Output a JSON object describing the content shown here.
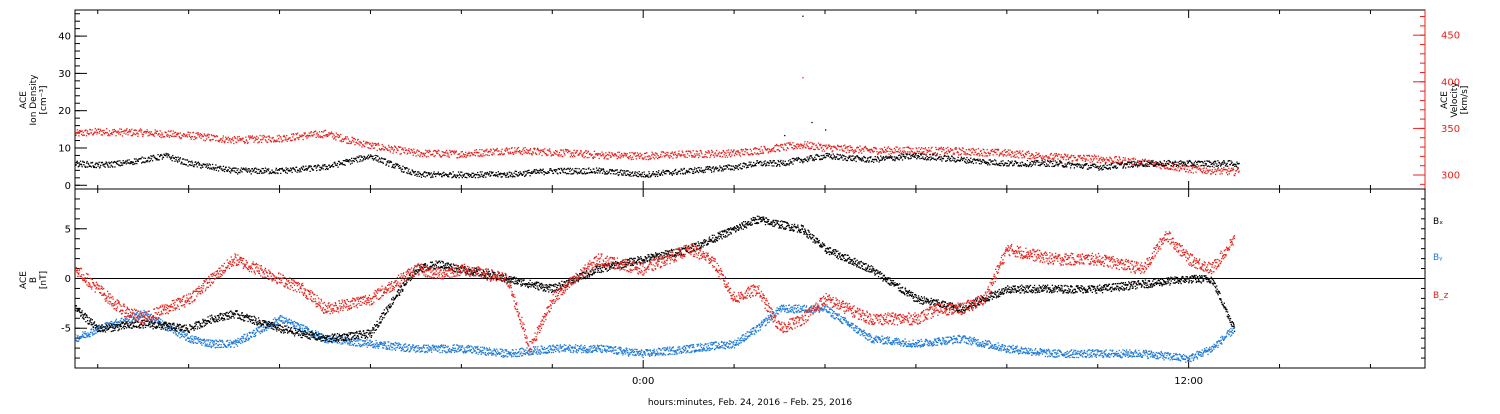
{
  "colors": {
    "black": "#000000",
    "velocity": "#e8211b",
    "by": "#1f7ad6",
    "bz": "#e8211b"
  },
  "xaxis": {
    "title": "hours:minutes, Feb. 24, 2016 – Feb. 25, 2016",
    "range_hours": [
      -12.5,
      17.2
    ],
    "major_ticks": [
      {
        "hour": 0,
        "label": "0:00"
      },
      {
        "hour": 12,
        "label": "12:00"
      }
    ],
    "minor_tick_step_hours": 2
  },
  "chart_data": [
    {
      "type": "scatter",
      "name": "top-panel",
      "left_axis": {
        "label_lines": [
          "ACE",
          "Ion Density",
          "[cm⁻³]"
        ],
        "range": [
          -1,
          47
        ],
        "ticks": [
          0,
          10,
          20,
          30,
          40
        ],
        "minor_step": 2
      },
      "right_axis": {
        "label_lines": [
          "ACE",
          "Velocity",
          "[km/s]"
        ],
        "range": [
          285,
          477
        ],
        "ticks": [
          300,
          350,
          400,
          450
        ],
        "minor_step": 10
      },
      "series": [
        {
          "name": "Ion Density",
          "color": "#000000",
          "x_hours": [
            -12.5,
            -12,
            -11.5,
            -11,
            -10.5,
            -10,
            -9,
            -8,
            -7,
            -6,
            -5,
            -4.5,
            -4,
            -3,
            -2,
            -1,
            0,
            1,
            2,
            2.5,
            3,
            3.5,
            4,
            5,
            6,
            7,
            8,
            9,
            10,
            11,
            12,
            13,
            13.1
          ],
          "values": [
            6,
            5.5,
            6,
            7,
            8,
            6,
            4,
            4,
            5,
            8,
            3,
            3,
            3,
            3,
            4,
            4,
            3,
            4,
            5,
            6,
            6,
            7,
            8,
            7,
            8,
            7,
            6,
            6,
            5,
            6,
            6,
            6,
            5.5
          ]
        },
        {
          "name": "Velocity",
          "color": "#e8211b",
          "x_hours": [
            -12.5,
            -12,
            -11,
            -10,
            -9,
            -8,
            -7,
            -6,
            -5,
            -4,
            -3,
            -2,
            -1,
            0,
            1,
            2,
            3,
            3.5,
            4,
            5,
            6,
            7,
            8,
            9,
            10,
            11,
            12,
            13,
            13.1
          ],
          "values": [
            345,
            347,
            346,
            343,
            338,
            340,
            345,
            332,
            324,
            323,
            327,
            325,
            322,
            321,
            323,
            324,
            330,
            333,
            330,
            327,
            327,
            326,
            324,
            320,
            318,
            314,
            307,
            304,
            307
          ]
        }
      ],
      "outliers": {
        "density": [
          {
            "x": 3.5,
            "y": 45.5
          },
          {
            "x": 3.1,
            "y": 13.5
          },
          {
            "x": 4.0,
            "y": 15
          },
          {
            "x": 3.7,
            "y": 17
          }
        ],
        "velocity": [
          {
            "x": 3.5,
            "y": 405
          }
        ]
      }
    },
    {
      "type": "scatter",
      "name": "bottom-panel",
      "left_axis": {
        "label_lines": [
          "ACE",
          "B",
          "[nT]"
        ],
        "range": [
          -9,
          9
        ],
        "ticks": [
          -5,
          0,
          5
        ],
        "minor_step": 1
      },
      "zero_line": true,
      "legend": [
        {
          "label": "Bₓ",
          "color": "#000000"
        },
        {
          "label": "Bᵧ",
          "color": "#1f7ad6"
        },
        {
          "label": "B_z",
          "color": "#e8211b"
        }
      ],
      "series": [
        {
          "name": "Bx",
          "color": "#000000",
          "x_hours": [
            -12.5,
            -12,
            -11,
            -10,
            -9.5,
            -9,
            -8,
            -7,
            -6,
            -5.5,
            -5,
            -4.5,
            -4,
            -3,
            -2,
            -1,
            0,
            1,
            1.5,
            2,
            2.5,
            3,
            3.5,
            4,
            5,
            6,
            7,
            8,
            9,
            10,
            11,
            12,
            12.5,
            13
          ],
          "values": [
            -3,
            -5,
            -4.5,
            -5,
            -4,
            -3.5,
            -5,
            -6,
            -5.5,
            -2,
            1,
            1.5,
            1,
            0,
            -1,
            1,
            2,
            3,
            4,
            5,
            6,
            5.5,
            5,
            3,
            1,
            -2,
            -3,
            -1,
            -1,
            -1,
            -0.5,
            0,
            0,
            -5
          ]
        },
        {
          "name": "By",
          "color": "#1f7ad6",
          "x_hours": [
            -12.5,
            -12,
            -11,
            -10,
            -9.5,
            -9,
            -8,
            -7,
            -6,
            -5,
            -4,
            -3,
            -2,
            -1,
            0,
            1,
            2,
            2.5,
            3,
            4,
            5,
            6,
            7,
            8,
            9,
            10,
            11,
            12,
            12.5,
            13
          ],
          "values": [
            -6,
            -5,
            -3.5,
            -6,
            -6.5,
            -6.5,
            -4,
            -6,
            -6.5,
            -7,
            -7,
            -7.5,
            -7,
            -7,
            -7.5,
            -7,
            -6.5,
            -5,
            -3,
            -3,
            -6,
            -6.5,
            -6,
            -7,
            -7.5,
            -7.5,
            -7.5,
            -8,
            -7,
            -5
          ]
        },
        {
          "name": "Bz",
          "color": "#e8211b",
          "x_hours": [
            -12.5,
            -12,
            -11.5,
            -11,
            -10.5,
            -10,
            -9.5,
            -9,
            -8,
            -7.5,
            -7,
            -6,
            -5,
            -4.5,
            -4,
            -3,
            -2.5,
            -2,
            -1,
            0,
            1,
            1.5,
            2,
            2.5,
            3,
            3.5,
            4,
            5,
            6,
            6.5,
            7,
            7.5,
            8,
            9,
            10,
            10.5,
            11,
            11.5,
            12,
            12.5,
            13
          ],
          "values": [
            1,
            -1,
            -3,
            -4,
            -3,
            -2,
            0,
            2,
            0,
            -1,
            -3,
            -2,
            1,
            0.5,
            1,
            0,
            -7,
            -2,
            2,
            1,
            3,
            2,
            -2,
            -1,
            -5,
            -4,
            -2,
            -4,
            -4,
            -3,
            -3,
            -2,
            3,
            2,
            2,
            1.5,
            1,
            4.5,
            2,
            1,
            4
          ]
        }
      ]
    }
  ]
}
